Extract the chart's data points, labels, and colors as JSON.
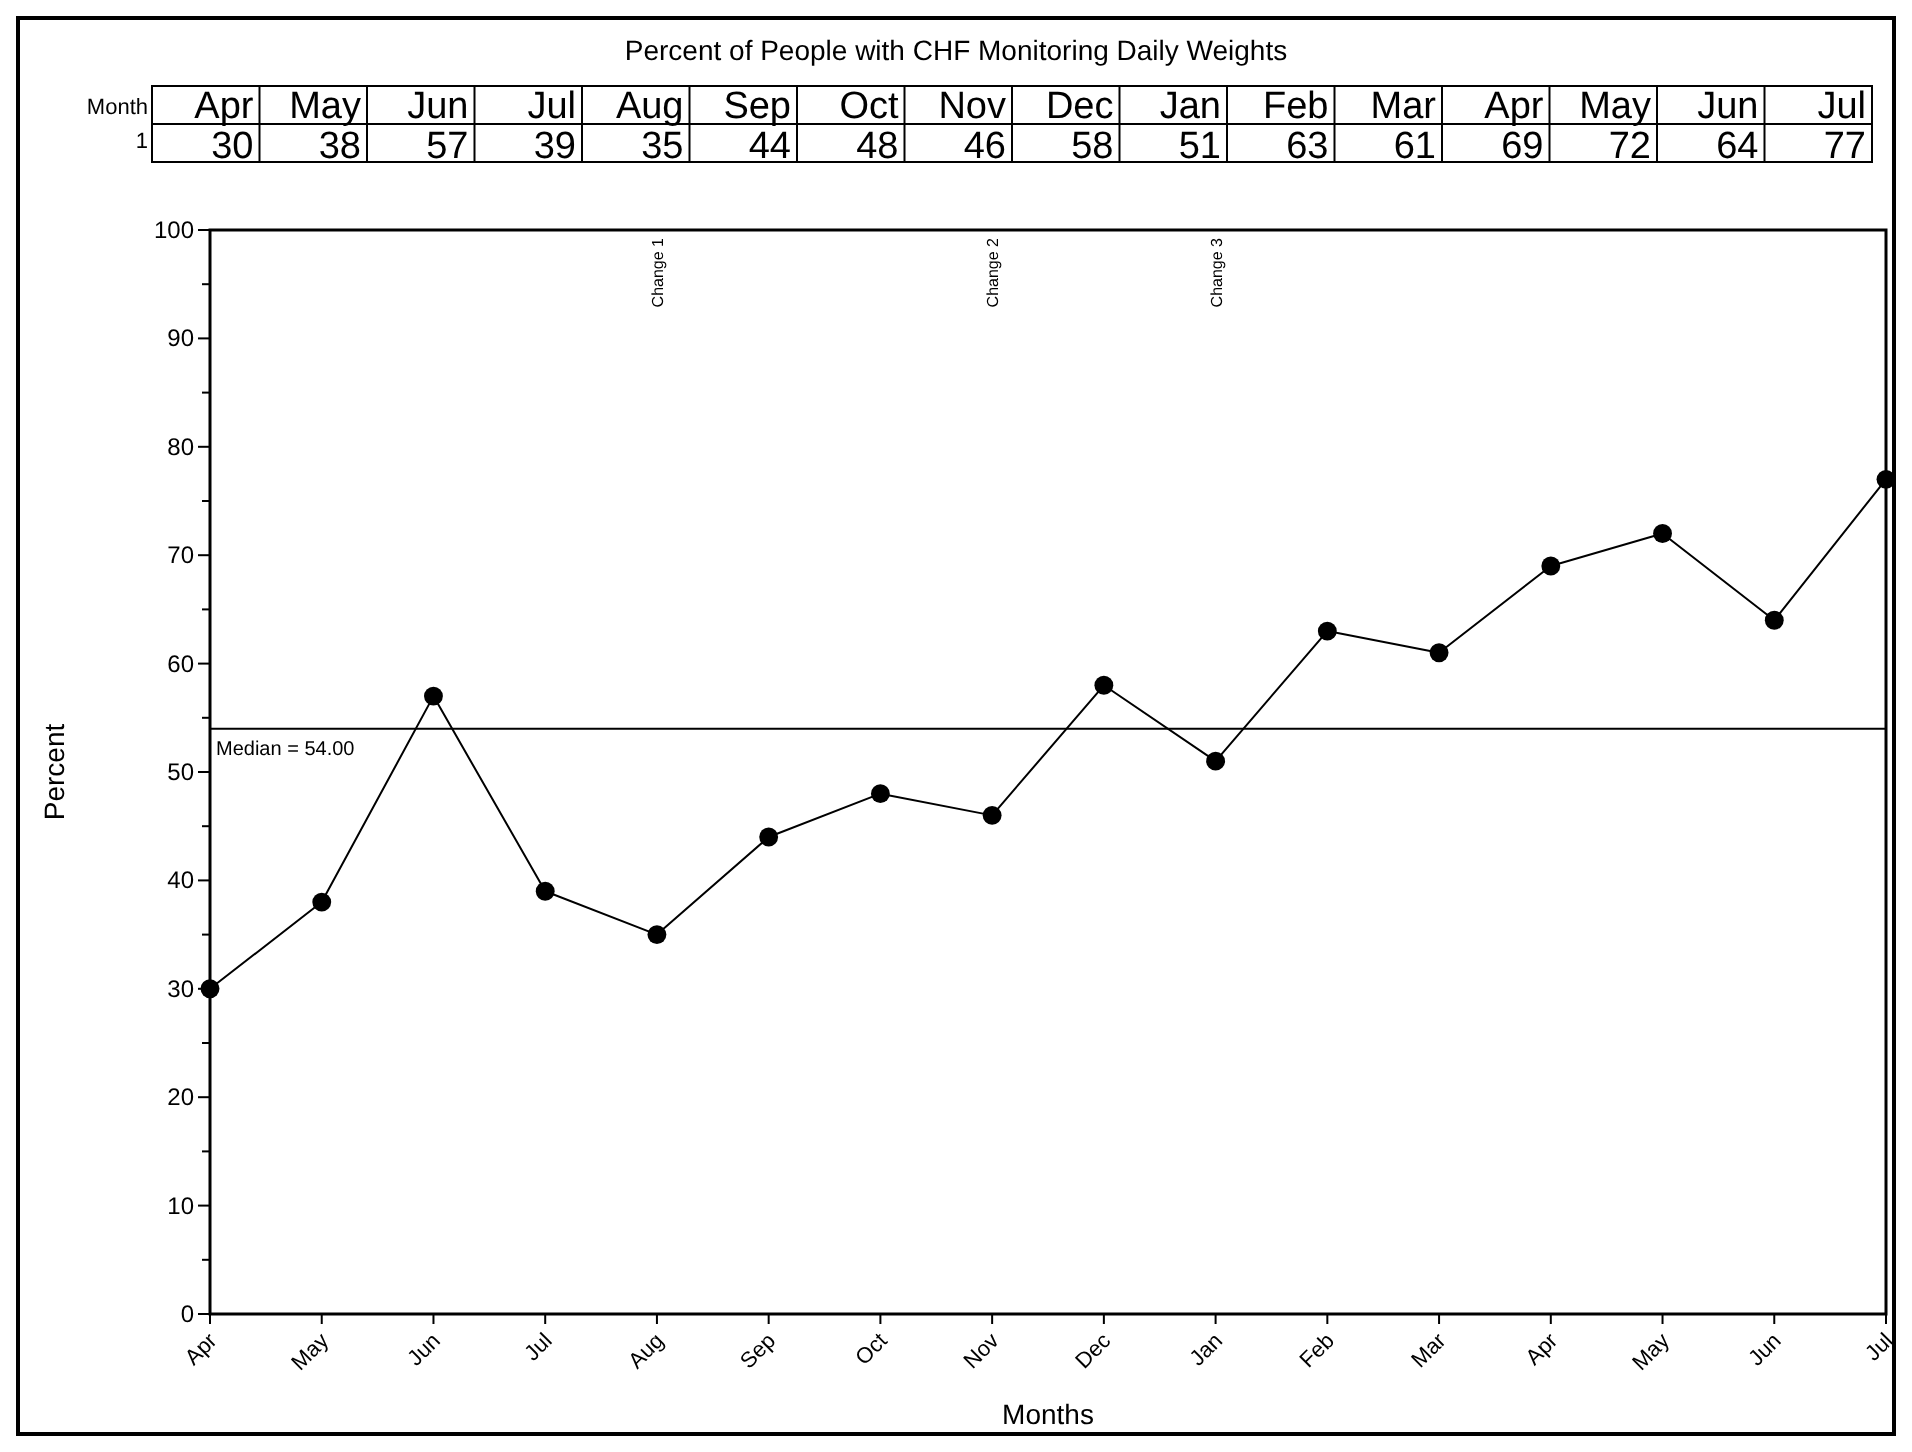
{
  "chart_data": {
    "type": "line",
    "title": "Percent of People with CHF Monitoring Daily Weights",
    "xlabel": "Months",
    "ylabel": "Percent",
    "categories": [
      "Apr",
      "May",
      "Jun",
      "Jul",
      "Aug",
      "Sep",
      "Oct",
      "Nov",
      "Dec",
      "Jan",
      "Feb",
      "Mar",
      "Apr",
      "May",
      "Jun",
      "Jul"
    ],
    "series": [
      {
        "color": "#000000",
        "values": [
          30,
          38,
          57,
          39,
          35,
          44,
          48,
          46,
          58,
          51,
          63,
          61,
          69,
          72,
          64,
          77
        ]
      }
    ],
    "ylim": [
      0,
      100
    ],
    "yticks": [
      0,
      {
        "value": 5,
        "label": null
      },
      10,
      {
        "value": 15,
        "label": null
      },
      20,
      {
        "value": 25,
        "label": null
      },
      30,
      {
        "value": 35,
        "label": null
      },
      40,
      {
        "value": 45,
        "label": null
      },
      50,
      {
        "value": 55,
        "label": null
      },
      60,
      {
        "value": 65,
        "label": null
      },
      70,
      {
        "value": 75,
        "label": null
      },
      80,
      {
        "value": 85,
        "label": null
      },
      90,
      {
        "value": 95,
        "label": null
      },
      100
    ],
    "ref_lines": [
      {
        "axis": "y",
        "value": 54,
        "label": "Median = 54.00",
        "color": "#000000",
        "line_style": "solid"
      }
    ],
    "annotations": [
      "Change 1",
      "Change 2",
      "Change 3",
      "Month",
      "1"
    ],
    "data_labels": true,
    "marker": "circle",
    "line_style": "solid",
    "grid": false
  }
}
